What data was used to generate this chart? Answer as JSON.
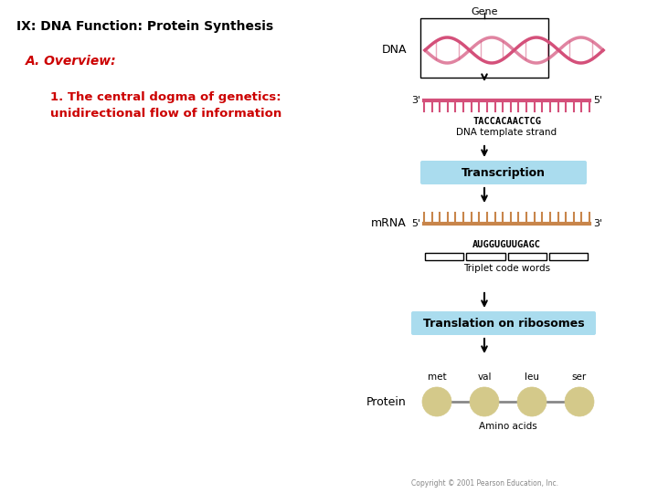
{
  "title": "IX: DNA Function: Protein Synthesis",
  "subtitle": "A. Overview:",
  "point1_line1": "1. The central dogma of genetics:",
  "point1_line2": "unidirectional flow of information",
  "bg_color": "#ffffff",
  "title_color": "#000000",
  "subtitle_color": "#cc0000",
  "point_color": "#cc0000",
  "gene_label": "Gene",
  "dna_label": "DNA",
  "dna_template_label": "DNA template strand",
  "dna_sequence": "TACCACAACTCG",
  "transcription_label": "Transcription",
  "mrna_label": "mRNA",
  "mrna_sequence": "AUGGUGUUGAGC",
  "triplet_label": "Triplet code words",
  "translation_label": "Translation on ribosomes",
  "protein_label": "Protein",
  "amino_labels": [
    "met",
    "val",
    "leu",
    "ser"
  ],
  "amino_acids_label": "Amino acids",
  "copyright": "Copyright © 2001 Pearson Education, Inc.",
  "arrow_color": "#000000",
  "transcription_box_color": "#aadcee",
  "translation_box_color": "#aadcee",
  "dna_strand_color": "#d4507a",
  "mrna_strand_color": "#c8854a",
  "amino_color": "#d4c98a",
  "amino_line_color": "#888888"
}
